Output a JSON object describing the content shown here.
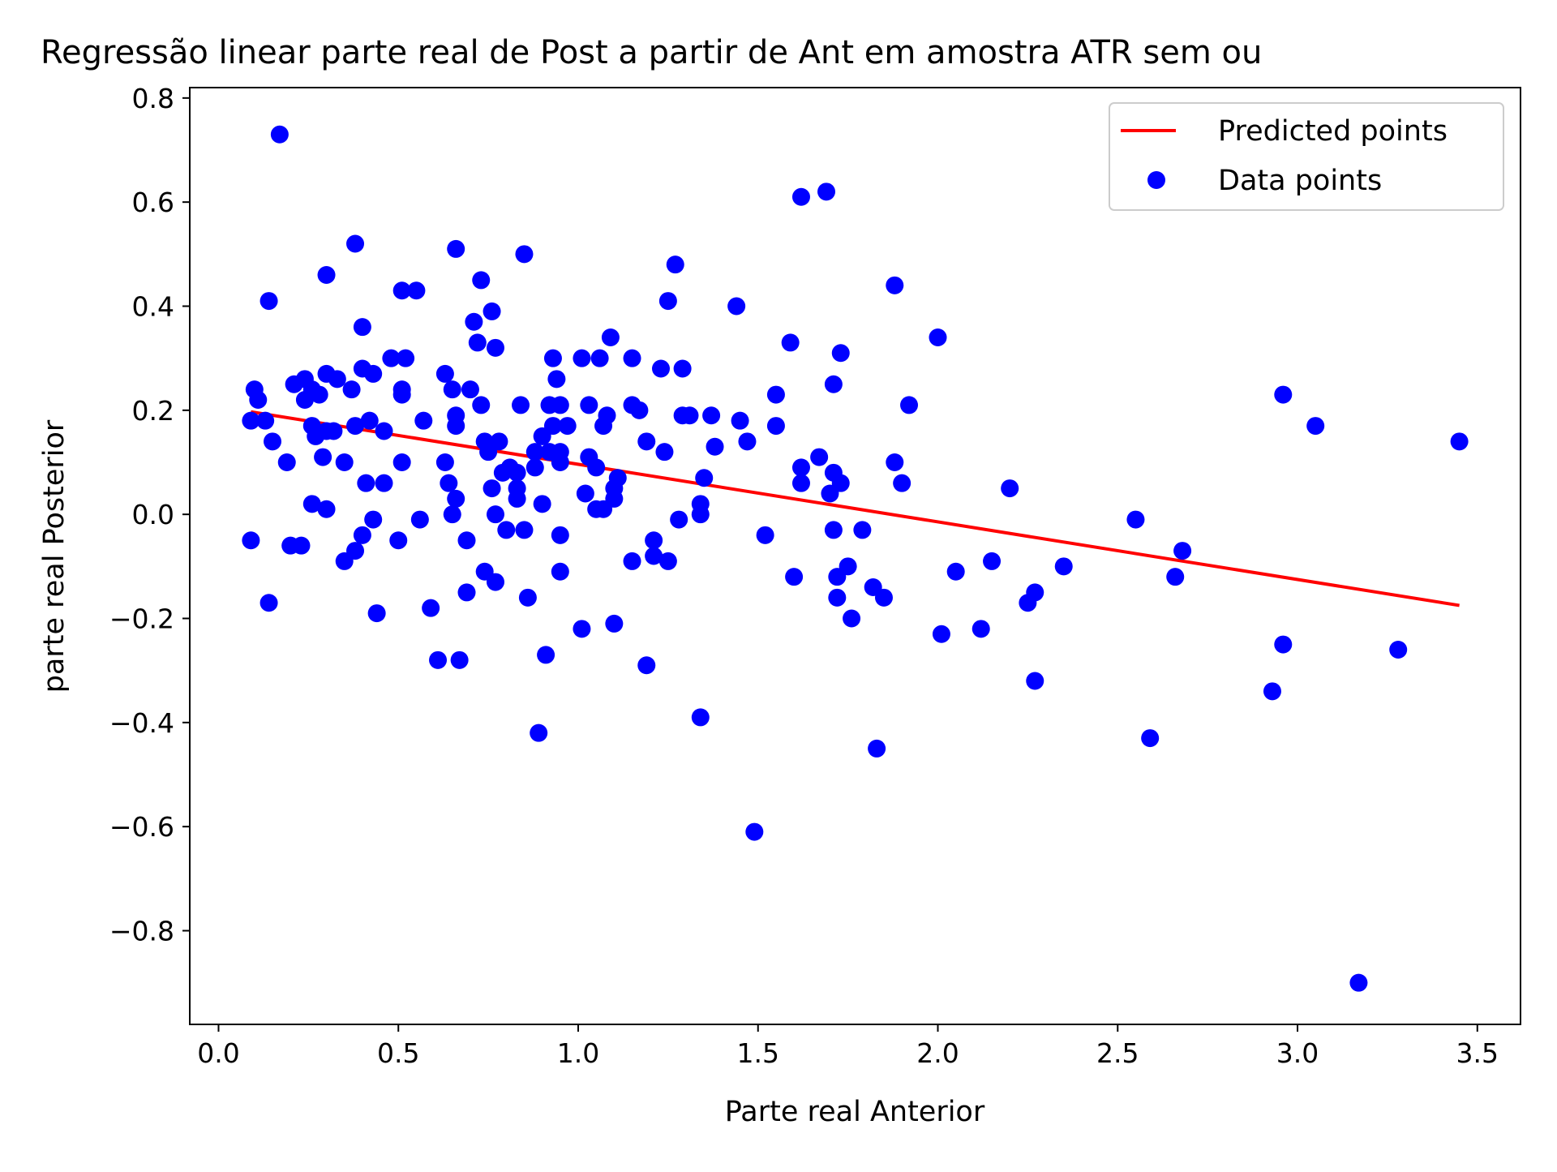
{
  "chart_data": {
    "type": "scatter",
    "title": "Regressão linear parte real de Post a partir de Ant em amostra ATR sem ou",
    "xlabel": "Parte real Anterior",
    "ylabel": "parte real Posterior",
    "xlim": [
      -0.08,
      3.62
    ],
    "ylim": [
      -0.98,
      0.82
    ],
    "x_ticks": [
      0.0,
      0.5,
      1.0,
      1.5,
      2.0,
      2.5,
      3.0,
      3.5
    ],
    "x_tick_labels": [
      "0.0",
      "0.5",
      "1.0",
      "1.5",
      "2.0",
      "2.5",
      "3.0",
      "3.5"
    ],
    "y_ticks": [
      -0.8,
      -0.6,
      -0.4,
      -0.2,
      0.0,
      0.2,
      0.4,
      0.6,
      0.8
    ],
    "y_tick_labels": [
      "−0.8",
      "−0.6",
      "−0.4",
      "−0.2",
      "0.0",
      "0.2",
      "0.4",
      "0.6",
      "0.8"
    ],
    "grid": false,
    "legend_position": "top-right",
    "series": [
      {
        "name": "Predicted points",
        "kind": "line",
        "color": "#ff0000",
        "points": [
          [
            0.09,
            0.197
          ],
          [
            3.45,
            -0.175
          ]
        ]
      },
      {
        "name": "Data points",
        "kind": "scatter",
        "color": "#0000ff",
        "points": [
          [
            0.17,
            0.73
          ],
          [
            1.69,
            0.62
          ],
          [
            1.62,
            0.61
          ],
          [
            0.38,
            0.52
          ],
          [
            0.66,
            0.51
          ],
          [
            0.85,
            0.5
          ],
          [
            1.27,
            0.48
          ],
          [
            0.3,
            0.46
          ],
          [
            0.73,
            0.45
          ],
          [
            1.88,
            0.44
          ],
          [
            0.51,
            0.43
          ],
          [
            0.55,
            0.43
          ],
          [
            0.14,
            0.41
          ],
          [
            1.25,
            0.41
          ],
          [
            1.44,
            0.4
          ],
          [
            0.76,
            0.39
          ],
          [
            0.71,
            0.37
          ],
          [
            0.4,
            0.36
          ],
          [
            1.09,
            0.34
          ],
          [
            2.0,
            0.34
          ],
          [
            1.59,
            0.33
          ],
          [
            0.72,
            0.33
          ],
          [
            0.77,
            0.32
          ],
          [
            1.73,
            0.31
          ],
          [
            1.01,
            0.3
          ],
          [
            1.06,
            0.3
          ],
          [
            0.93,
            0.3
          ],
          [
            1.15,
            0.3
          ],
          [
            0.48,
            0.3
          ],
          [
            0.52,
            0.3
          ],
          [
            0.4,
            0.28
          ],
          [
            1.23,
            0.28
          ],
          [
            1.29,
            0.28
          ],
          [
            0.43,
            0.27
          ],
          [
            0.63,
            0.27
          ],
          [
            0.3,
            0.27
          ],
          [
            0.94,
            0.26
          ],
          [
            0.24,
            0.26
          ],
          [
            0.33,
            0.26
          ],
          [
            0.21,
            0.25
          ],
          [
            0.1,
            0.24
          ],
          [
            0.7,
            0.24
          ],
          [
            0.37,
            0.24
          ],
          [
            0.26,
            0.24
          ],
          [
            0.28,
            0.23
          ],
          [
            0.51,
            0.24
          ],
          [
            0.65,
            0.24
          ],
          [
            1.71,
            0.25
          ],
          [
            0.51,
            0.23
          ],
          [
            2.96,
            0.23
          ],
          [
            1.55,
            0.23
          ],
          [
            0.24,
            0.22
          ],
          [
            0.11,
            0.22
          ],
          [
            0.84,
            0.21
          ],
          [
            0.92,
            0.21
          ],
          [
            1.03,
            0.21
          ],
          [
            0.95,
            0.21
          ],
          [
            1.15,
            0.21
          ],
          [
            1.92,
            0.21
          ],
          [
            0.73,
            0.21
          ],
          [
            1.17,
            0.2
          ],
          [
            0.66,
            0.19
          ],
          [
            1.08,
            0.19
          ],
          [
            1.31,
            0.19
          ],
          [
            1.37,
            0.19
          ],
          [
            1.29,
            0.19
          ],
          [
            0.09,
            0.18
          ],
          [
            0.57,
            0.18
          ],
          [
            0.42,
            0.18
          ],
          [
            0.13,
            0.18
          ],
          [
            1.45,
            0.18
          ],
          [
            0.38,
            0.17
          ],
          [
            0.26,
            0.17
          ],
          [
            0.66,
            0.17
          ],
          [
            0.93,
            0.17
          ],
          [
            1.07,
            0.17
          ],
          [
            0.97,
            0.17
          ],
          [
            1.55,
            0.17
          ],
          [
            3.05,
            0.17
          ],
          [
            0.3,
            0.16
          ],
          [
            0.32,
            0.16
          ],
          [
            0.46,
            0.16
          ],
          [
            0.9,
            0.15
          ],
          [
            0.27,
            0.15
          ],
          [
            0.15,
            0.14
          ],
          [
            1.47,
            0.14
          ],
          [
            0.74,
            0.14
          ],
          [
            0.78,
            0.14
          ],
          [
            1.19,
            0.14
          ],
          [
            3.45,
            0.14
          ],
          [
            1.38,
            0.13
          ],
          [
            0.92,
            0.12
          ],
          [
            0.75,
            0.12
          ],
          [
            0.95,
            0.12
          ],
          [
            0.88,
            0.12
          ],
          [
            1.24,
            0.12
          ],
          [
            0.29,
            0.11
          ],
          [
            1.67,
            0.11
          ],
          [
            1.03,
            0.11
          ],
          [
            0.19,
            0.1
          ],
          [
            0.35,
            0.1
          ],
          [
            0.51,
            0.1
          ],
          [
            0.63,
            0.1
          ],
          [
            0.95,
            0.1
          ],
          [
            1.88,
            0.1
          ],
          [
            0.81,
            0.09
          ],
          [
            1.05,
            0.09
          ],
          [
            0.88,
            0.09
          ],
          [
            0.83,
            0.08
          ],
          [
            1.62,
            0.09
          ],
          [
            1.71,
            0.08
          ],
          [
            0.79,
            0.08
          ],
          [
            1.11,
            0.07
          ],
          [
            1.35,
            0.07
          ],
          [
            1.62,
            0.06
          ],
          [
            0.41,
            0.06
          ],
          [
            0.46,
            0.06
          ],
          [
            0.64,
            0.06
          ],
          [
            0.76,
            0.05
          ],
          [
            0.83,
            0.05
          ],
          [
            1.73,
            0.06
          ],
          [
            1.9,
            0.06
          ],
          [
            2.2,
            0.05
          ],
          [
            1.1,
            0.05
          ],
          [
            1.02,
            0.04
          ],
          [
            0.83,
            0.03
          ],
          [
            0.66,
            0.03
          ],
          [
            1.1,
            0.03
          ],
          [
            1.7,
            0.04
          ],
          [
            1.34,
            0.02
          ],
          [
            0.26,
            0.02
          ],
          [
            0.3,
            0.01
          ],
          [
            0.9,
            0.02
          ],
          [
            1.05,
            0.01
          ],
          [
            1.07,
            0.01
          ],
          [
            0.65,
            0.0
          ],
          [
            0.77,
            0.0
          ],
          [
            1.34,
            0.0
          ],
          [
            0.56,
            -0.01
          ],
          [
            0.43,
            -0.01
          ],
          [
            1.28,
            -0.01
          ],
          [
            2.55,
            -0.01
          ],
          [
            0.8,
            -0.03
          ],
          [
            0.85,
            -0.03
          ],
          [
            0.95,
            -0.04
          ],
          [
            1.71,
            -0.03
          ],
          [
            1.79,
            -0.03
          ],
          [
            0.09,
            -0.05
          ],
          [
            0.4,
            -0.04
          ],
          [
            0.5,
            -0.05
          ],
          [
            0.69,
            -0.05
          ],
          [
            1.21,
            -0.05
          ],
          [
            1.52,
            -0.04
          ],
          [
            0.2,
            -0.06
          ],
          [
            0.23,
            -0.06
          ],
          [
            2.68,
            -0.07
          ],
          [
            0.38,
            -0.07
          ],
          [
            1.21,
            -0.08
          ],
          [
            1.25,
            -0.09
          ],
          [
            0.35,
            -0.09
          ],
          [
            1.15,
            -0.09
          ],
          [
            2.15,
            -0.09
          ],
          [
            1.75,
            -0.1
          ],
          [
            2.35,
            -0.1
          ],
          [
            0.74,
            -0.11
          ],
          [
            0.95,
            -0.11
          ],
          [
            2.05,
            -0.11
          ],
          [
            1.6,
            -0.12
          ],
          [
            0.77,
            -0.13
          ],
          [
            1.72,
            -0.12
          ],
          [
            2.66,
            -0.12
          ],
          [
            0.69,
            -0.15
          ],
          [
            2.27,
            -0.15
          ],
          [
            1.82,
            -0.14
          ],
          [
            0.86,
            -0.16
          ],
          [
            1.72,
            -0.16
          ],
          [
            1.85,
            -0.16
          ],
          [
            2.25,
            -0.17
          ],
          [
            0.14,
            -0.17
          ],
          [
            0.59,
            -0.18
          ],
          [
            0.44,
            -0.19
          ],
          [
            1.76,
            -0.2
          ],
          [
            1.1,
            -0.21
          ],
          [
            1.01,
            -0.22
          ],
          [
            2.12,
            -0.22
          ],
          [
            2.01,
            -0.23
          ],
          [
            2.96,
            -0.25
          ],
          [
            3.28,
            -0.26
          ],
          [
            0.61,
            -0.28
          ],
          [
            0.67,
            -0.28
          ],
          [
            0.91,
            -0.27
          ],
          [
            1.19,
            -0.29
          ],
          [
            2.27,
            -0.32
          ],
          [
            2.93,
            -0.34
          ],
          [
            1.34,
            -0.39
          ],
          [
            0.89,
            -0.42
          ],
          [
            2.59,
            -0.43
          ],
          [
            1.83,
            -0.45
          ],
          [
            1.49,
            -0.61
          ],
          [
            3.17,
            -0.9
          ]
        ]
      }
    ]
  }
}
